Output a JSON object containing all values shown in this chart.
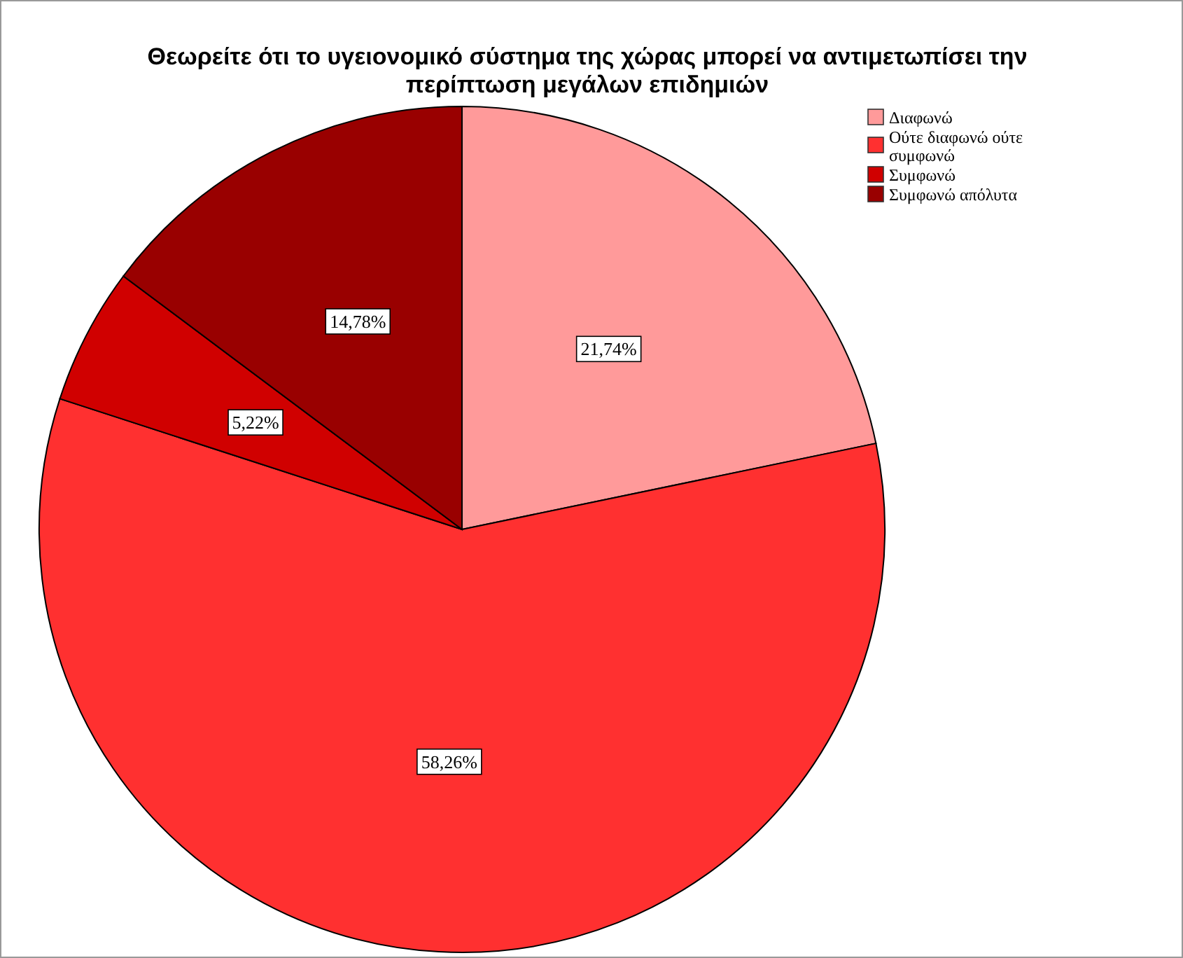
{
  "chart_data": {
    "type": "pie",
    "title": "Θεωρείτε ότι το υγειονομικό σύστημα της χώρας μπορεί να αντιμετωπίσει την περίπτωση μεγάλων επιδημιών",
    "categories": [
      "Διαφωνώ",
      "Ούτε διαφωνώ ούτε συμφωνώ",
      "Συμφωνώ",
      "Συμφωνώ απόλυτα"
    ],
    "values": [
      21.74,
      58.26,
      5.22,
      14.78
    ],
    "colors": [
      "#ff9a9a",
      "#ff3030",
      "#d00000",
      "#990000"
    ],
    "value_labels": [
      "21,74%",
      "58,26%",
      "5,22%",
      "14,78%"
    ],
    "legend": "top right"
  }
}
